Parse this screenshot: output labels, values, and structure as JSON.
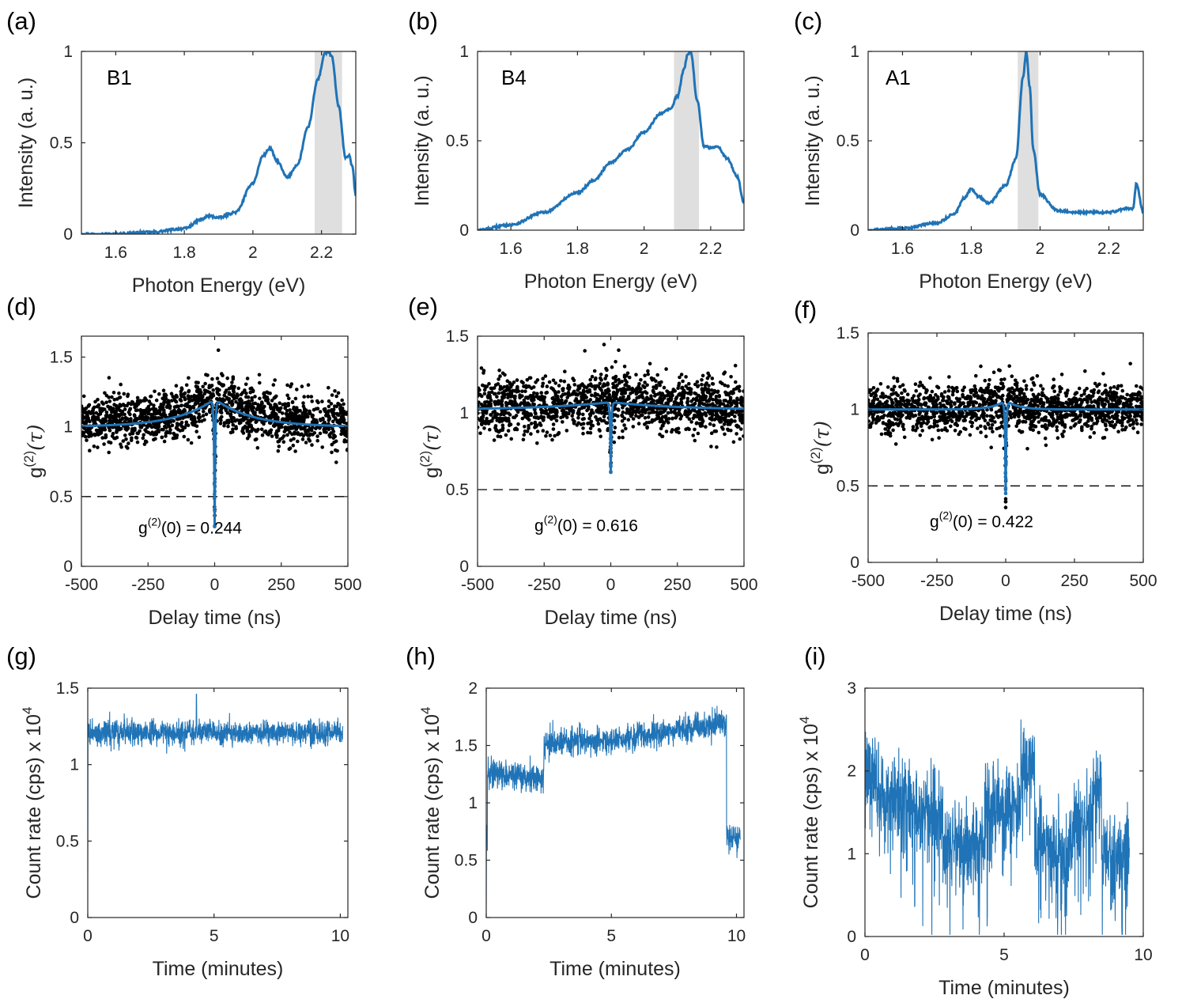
{
  "chart_data": [
    {
      "panel": "(a)",
      "type": "line",
      "tag": "B1",
      "xlabel": "Photon Energy (eV)",
      "ylabel": "Intensity (a. u.)",
      "xlim": [
        1.5,
        2.3
      ],
      "ylim": [
        0,
        1
      ],
      "xticks": [
        "1.6",
        "1.8",
        "2",
        "2.2"
      ],
      "xtick_values": [
        1.6,
        1.8,
        2.0,
        2.2
      ],
      "yticks": [
        "0",
        "0.5",
        "1"
      ],
      "ytick_values": [
        0,
        0.5,
        1
      ],
      "shaded_band": [
        2.18,
        2.26
      ],
      "series": [
        {
          "x": [
            1.5,
            1.6,
            1.7,
            1.8,
            1.85,
            1.87,
            1.9,
            1.95,
            2.0,
            2.03,
            2.05,
            2.07,
            2.1,
            2.13,
            2.16,
            2.19,
            2.21,
            2.22,
            2.23,
            2.25,
            2.27,
            2.28,
            2.29,
            2.3
          ],
          "y": [
            0.0,
            0.0,
            0.01,
            0.03,
            0.08,
            0.1,
            0.09,
            0.12,
            0.28,
            0.43,
            0.47,
            0.4,
            0.31,
            0.38,
            0.58,
            0.85,
            0.99,
            1.0,
            0.97,
            0.7,
            0.42,
            0.43,
            0.37,
            0.21
          ],
          "color": "#1f73b6"
        }
      ]
    },
    {
      "panel": "(b)",
      "type": "line",
      "tag": "B4",
      "xlabel": "Photon Energy (eV)",
      "ylabel": "Intensity (a. u.)",
      "xlim": [
        1.5,
        2.3
      ],
      "ylim": [
        0,
        1
      ],
      "xticks": [
        "1.6",
        "1.8",
        "2",
        "2.2"
      ],
      "xtick_values": [
        1.6,
        1.8,
        2.0,
        2.2
      ],
      "yticks": [
        "0",
        "0.5",
        "1"
      ],
      "ytick_values": [
        0,
        0.5,
        1
      ],
      "shaded_band": [
        2.09,
        2.165
      ],
      "series": [
        {
          "x": [
            1.5,
            1.6,
            1.7,
            1.8,
            1.85,
            1.9,
            1.95,
            2.0,
            2.05,
            2.08,
            2.1,
            2.12,
            2.13,
            2.14,
            2.16,
            2.18,
            2.2,
            2.22,
            2.25,
            2.28,
            2.3
          ],
          "y": [
            0.0,
            0.03,
            0.1,
            0.21,
            0.28,
            0.38,
            0.45,
            0.55,
            0.65,
            0.68,
            0.75,
            0.9,
            0.98,
            1.0,
            0.72,
            0.47,
            0.46,
            0.47,
            0.4,
            0.3,
            0.15
          ],
          "color": "#1f73b6"
        }
      ]
    },
    {
      "panel": "(c)",
      "type": "line",
      "tag": "A1",
      "xlabel": "Photon Energy (eV)",
      "ylabel": "Intensity (a. u.)",
      "xlim": [
        1.5,
        2.3
      ],
      "ylim": [
        0,
        1
      ],
      "xticks": [
        "1.6",
        "1.8",
        "2",
        "2.2"
      ],
      "xtick_values": [
        1.6,
        1.8,
        2.0,
        2.2
      ],
      "yticks": [
        "0",
        "0.5",
        "1"
      ],
      "ytick_values": [
        0,
        0.5,
        1
      ],
      "shaded_band": [
        1.935,
        1.995
      ],
      "series": [
        {
          "x": [
            1.5,
            1.6,
            1.7,
            1.75,
            1.78,
            1.8,
            1.82,
            1.85,
            1.9,
            1.93,
            1.95,
            1.96,
            1.97,
            1.98,
            2.0,
            2.05,
            2.1,
            2.2,
            2.25,
            2.27,
            2.28,
            2.3
          ],
          "y": [
            0.0,
            0.01,
            0.04,
            0.09,
            0.18,
            0.23,
            0.19,
            0.15,
            0.25,
            0.4,
            0.85,
            1.0,
            0.8,
            0.45,
            0.2,
            0.11,
            0.1,
            0.1,
            0.12,
            0.12,
            0.26,
            0.1
          ],
          "color": "#1f73b6"
        }
      ]
    },
    {
      "panel": "(d)",
      "type": "scatter",
      "xlabel": "Delay time (ns)",
      "ylabel_main": "g",
      "ylabel_sup": "(2)",
      "ylabel_arg": "(τ)",
      "xlim": [
        -500,
        500
      ],
      "ylim": [
        0,
        1.65
      ],
      "xticks": [
        "-500",
        "-250",
        "0",
        "250",
        "500"
      ],
      "xtick_values": [
        -500,
        -250,
        0,
        250,
        500
      ],
      "yticks": [
        "0",
        "0.5",
        "1",
        "1.5"
      ],
      "ytick_values": [
        0,
        0.5,
        1,
        1.5
      ],
      "annotation": {
        "prefix": "g",
        "sup": "(2)",
        "text": "(0) = 0.244"
      },
      "g2_zero": 0.244,
      "dashed_level": 0.5,
      "scatter": {
        "center": 1.03,
        "noise": 0.09,
        "n_points": 1500,
        "color": "#000000"
      },
      "fit": {
        "baseline": 1.0,
        "bunching_amp": 0.2,
        "bunching_tau_ns": 140,
        "dip_min": 0.28,
        "dip_tau_ns": 2.5,
        "color": "#1f73b6"
      }
    },
    {
      "panel": "(e)",
      "type": "scatter",
      "xlabel": "Delay time (ns)",
      "ylabel_main": "g",
      "ylabel_sup": "(2)",
      "ylabel_arg": "(τ)",
      "xlim": [
        -500,
        500
      ],
      "ylim": [
        0,
        1.5
      ],
      "xticks": [
        "-500",
        "-250",
        "0",
        "250",
        "500"
      ],
      "xtick_values": [
        -500,
        -250,
        0,
        250,
        500
      ],
      "yticks": [
        "0",
        "0.5",
        "1",
        "1.5"
      ],
      "ytick_values": [
        0,
        0.5,
        1,
        1.5
      ],
      "annotation": {
        "prefix": "g",
        "sup": "(2)",
        "text": "(0) = 0.616"
      },
      "g2_zero": 0.616,
      "dashed_level": 0.5,
      "scatter": {
        "center": 1.03,
        "noise": 0.09,
        "n_points": 1500,
        "color": "#000000"
      },
      "fit": {
        "baseline": 1.02,
        "bunching_amp": 0.05,
        "bunching_tau_ns": 260,
        "dip_min": 0.62,
        "dip_tau_ns": 2.5,
        "color": "#1f73b6"
      }
    },
    {
      "panel": "(f)",
      "type": "scatter",
      "xlabel": "Delay time (ns)",
      "ylabel_main": "g",
      "ylabel_sup": "(2)",
      "ylabel_arg": "(τ)",
      "xlim": [
        -500,
        500
      ],
      "ylim": [
        0,
        1.5
      ],
      "xticks": [
        "-500",
        "-250",
        "0",
        "250",
        "500"
      ],
      "xtick_values": [
        -500,
        -250,
        0,
        250,
        500
      ],
      "yticks": [
        "0",
        "0.5",
        "1",
        "1.5"
      ],
      "ytick_values": [
        0,
        0.5,
        1,
        1.5
      ],
      "annotation": {
        "prefix": "g",
        "sup": "(2)",
        "text": "(0) = 0.422"
      },
      "g2_zero": 0.422,
      "dashed_level": 0.5,
      "scatter": {
        "center": 1.0,
        "noise": 0.08,
        "n_points": 1500,
        "color": "#000000"
      },
      "fit": {
        "baseline": 1.0,
        "bunching_amp": 0.06,
        "bunching_tau_ns": 45,
        "dip_min": 0.44,
        "dip_tau_ns": 2.5,
        "color": "#1f73b6"
      }
    },
    {
      "panel": "(g)",
      "type": "line",
      "xlabel": "Time (minutes)",
      "ylabel": "Count rate (cps) x 10",
      "ylabel_sup": "4",
      "xlim": [
        0,
        10.3
      ],
      "ylim": [
        0,
        1.5
      ],
      "xticks": [
        "0",
        "5",
        "10"
      ],
      "xtick_values": [
        0,
        5,
        10
      ],
      "yticks": [
        "0",
        "0.5",
        "1",
        "1.5"
      ],
      "ytick_values": [
        0,
        0.5,
        1,
        1.5
      ],
      "trace": {
        "t_end": 10.1,
        "start_value": 0.3,
        "segments": [
          [
            0.05,
            10.1,
            1.21
          ]
        ],
        "noise": 0.04,
        "spikes": [
          [
            4.3,
            1.46
          ]
        ],
        "color": "#1f73b6"
      }
    },
    {
      "panel": "(h)",
      "type": "line",
      "xlabel": "Time (minutes)",
      "ylabel": "Count rate (cps) x 10",
      "ylabel_sup": "4",
      "xlim": [
        0,
        10.3
      ],
      "ylim": [
        0,
        2
      ],
      "xticks": [
        "0",
        "5",
        "10"
      ],
      "xtick_values": [
        0,
        5,
        10
      ],
      "yticks": [
        "0",
        "0.5",
        "1",
        "1.5",
        "2"
      ],
      "ytick_values": [
        0,
        0.5,
        1,
        1.5,
        2
      ],
      "trace": {
        "t_end": 10.15,
        "start_value": 0.1,
        "segments": [
          [
            0.05,
            2.3,
            1.26,
            1.22
          ],
          [
            2.3,
            6.0,
            1.52,
            1.56
          ],
          [
            6.0,
            7.2,
            1.6,
            1.6
          ],
          [
            7.2,
            9.6,
            1.62,
            1.68
          ],
          [
            9.6,
            10.15,
            0.7,
            0.7
          ]
        ],
        "noise": 0.06,
        "spikes": [],
        "color": "#1f73b6"
      }
    },
    {
      "panel": "(i)",
      "type": "line",
      "xlabel": "Time (minutes)",
      "ylabel": "Count rate (cps) x 10",
      "ylabel_sup": "4",
      "xlim": [
        0,
        10
      ],
      "ylim": [
        0,
        3
      ],
      "xticks": [
        "0",
        "5",
        "10"
      ],
      "xtick_values": [
        0,
        5,
        10
      ],
      "yticks": [
        "0",
        "1",
        "2",
        "3"
      ],
      "ytick_values": [
        0,
        1,
        2,
        3
      ],
      "trace": {
        "t_end": 9.5,
        "start_value": 2.0,
        "segments": [
          [
            0.0,
            0.5,
            2.1,
            1.9
          ],
          [
            0.5,
            2.8,
            1.75,
            1.5
          ],
          [
            2.8,
            4.3,
            1.1,
            1.1
          ],
          [
            4.3,
            5.6,
            1.6,
            1.6
          ],
          [
            5.6,
            6.1,
            2.1,
            2.1
          ],
          [
            6.1,
            7.3,
            1.2,
            0.9
          ],
          [
            7.3,
            8.2,
            1.25,
            1.5
          ],
          [
            8.2,
            8.5,
            1.9,
            1.7
          ],
          [
            8.5,
            9.5,
            1.0,
            0.95
          ]
        ],
        "noise": 0.25,
        "drops": 0.12,
        "spikes": [],
        "color": "#1f73b6"
      }
    }
  ]
}
